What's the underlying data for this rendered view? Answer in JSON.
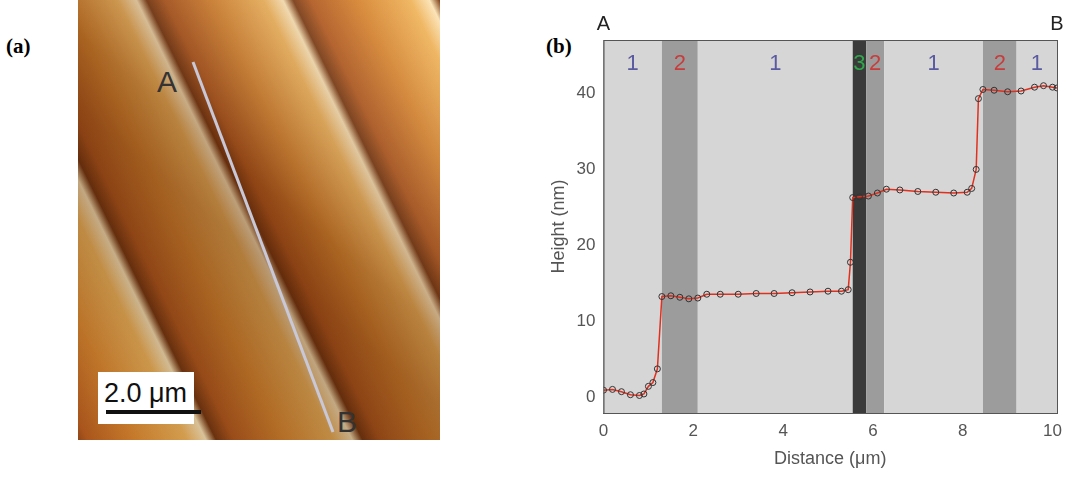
{
  "image_panel": {
    "panel": "(a)",
    "line_start_label": "A",
    "line_end_label": "B",
    "scale_bar": "2.0 μm"
  },
  "chart_data": {
    "type": "line",
    "panel": "(b)",
    "x_label": "Distance (μm)",
    "y_label": "Height (nm)",
    "end_labels": [
      "A",
      "B"
    ],
    "x": [
      0,
      0.2,
      0.4,
      0.6,
      0.8,
      0.9,
      1.0,
      1.1,
      1.2,
      1.3,
      1.5,
      1.7,
      1.9,
      2.1,
      2.3,
      2.6,
      3.0,
      3.4,
      3.8,
      4.2,
      4.6,
      5.0,
      5.3,
      5.45,
      5.5,
      5.55,
      5.7,
      5.9,
      6.1,
      6.3,
      6.6,
      7.0,
      7.4,
      7.8,
      8.1,
      8.2,
      8.3,
      8.35,
      8.45,
      8.7,
      9.0,
      9.3,
      9.6,
      9.8,
      10.0,
      10.1
    ],
    "values": [
      1.0,
      1.1,
      0.8,
      0.4,
      0.3,
      0.5,
      1.5,
      2.0,
      3.8,
      13.3,
      13.4,
      13.2,
      13.0,
      13.1,
      13.6,
      13.6,
      13.6,
      13.7,
      13.7,
      13.8,
      13.9,
      14.0,
      14.0,
      14.2,
      17.8,
      26.3,
      26.4,
      26.5,
      26.9,
      27.4,
      27.3,
      27.1,
      27.0,
      26.9,
      27.0,
      27.5,
      30.0,
      39.3,
      40.5,
      40.4,
      40.2,
      40.3,
      40.8,
      41.0,
      40.8,
      40.7
    ],
    "color": "#e0301e",
    "marker": "circle",
    "line_style": "solid",
    "regions": [
      {
        "label": "1",
        "start": 0,
        "end": 1.3,
        "color": "#d6d6d6",
        "label_color": "#5a5aa0"
      },
      {
        "label": "2",
        "start": 1.3,
        "end": 2.1,
        "color": "#9c9c9c",
        "label_color": "#c83c3c"
      },
      {
        "label": "1",
        "start": 2.1,
        "end": 5.55,
        "color": "#d6d6d6",
        "label_color": "#5a5aa0"
      },
      {
        "label": "3",
        "start": 5.55,
        "end": 5.85,
        "color": "#3a3a3a",
        "label_color": "#2ea84a"
      },
      {
        "label": "2",
        "start": 5.85,
        "end": 6.25,
        "color": "#9c9c9c",
        "label_color": "#c83c3c"
      },
      {
        "label": "1",
        "start": 6.25,
        "end": 8.45,
        "color": "#d6d6d6",
        "label_color": "#5a5aa0"
      },
      {
        "label": "2",
        "start": 8.45,
        "end": 9.2,
        "color": "#9c9c9c",
        "label_color": "#c83c3c"
      },
      {
        "label": "1",
        "start": 9.2,
        "end": 10.1,
        "color": "#d6d6d6",
        "label_color": "#5a5aa0"
      }
    ],
    "xlim": [
      0,
      10.1
    ],
    "xticks": [
      0,
      2,
      4,
      6,
      8,
      10
    ],
    "ylim": [
      -2,
      47
    ],
    "yticks": [
      0,
      10,
      20,
      30,
      40
    ],
    "grid": false
  }
}
